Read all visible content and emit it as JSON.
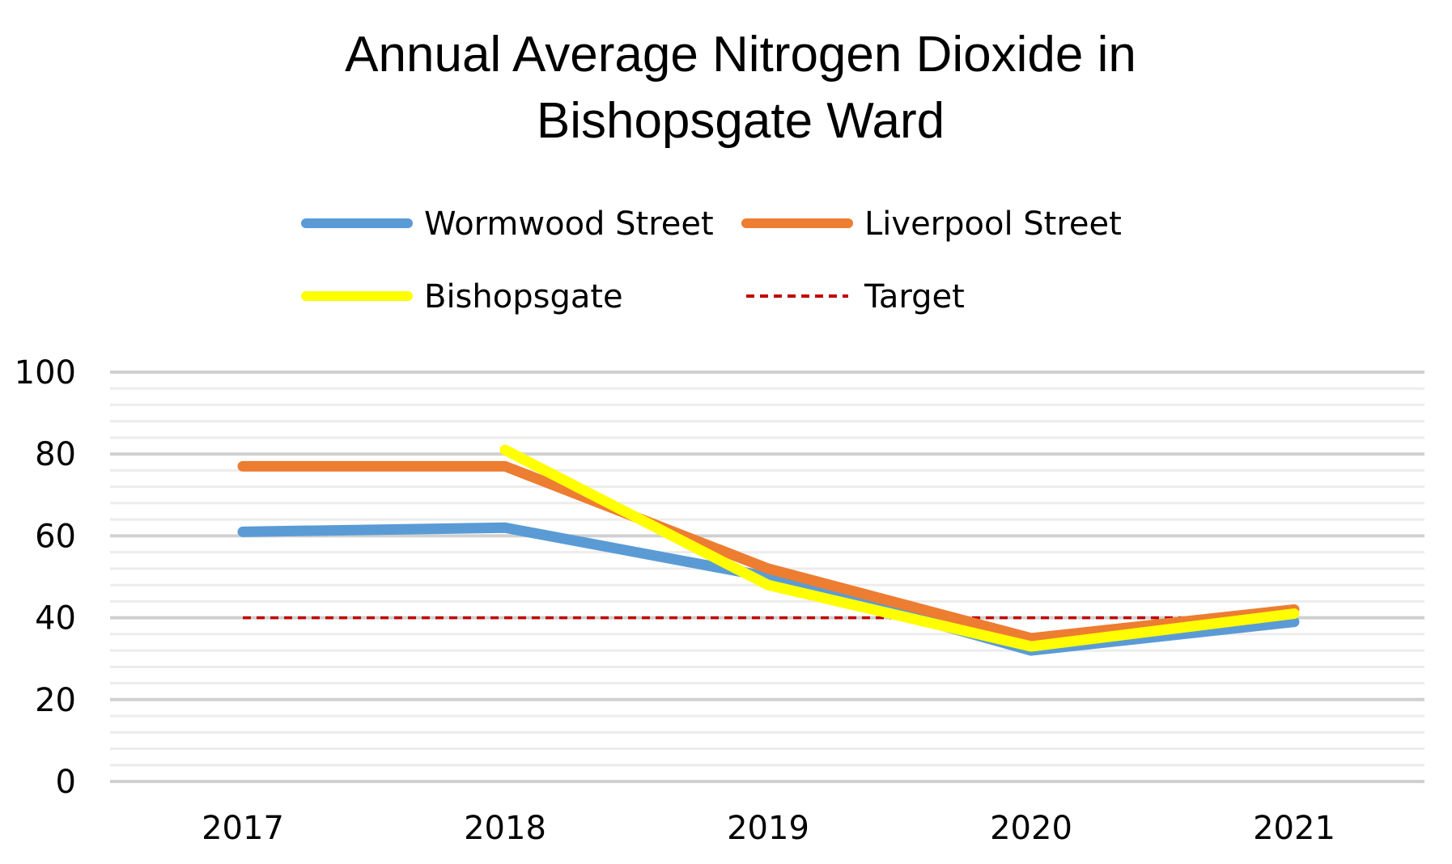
{
  "chart_data": {
    "type": "line",
    "title_lines": [
      "Annual Average  Nitrogen Dioxide in",
      "Bishopsgate Ward"
    ],
    "xlabel": "",
    "ylabel": "",
    "categories": [
      "2017",
      "2018",
      "2019",
      "2020",
      "2021"
    ],
    "ylim": [
      0,
      100
    ],
    "yticks": [
      0,
      20,
      40,
      60,
      80,
      100
    ],
    "grid": true,
    "legend_position": "top",
    "series": [
      {
        "name": "Wormwood Street",
        "color": "#5B9BD5",
        "style": "solid",
        "values": [
          61,
          62,
          50,
          32,
          39
        ]
      },
      {
        "name": "Liverpool Street",
        "color": "#ED7D31",
        "style": "solid",
        "values": [
          77,
          77,
          52,
          35,
          42
        ]
      },
      {
        "name": "Bishopsgate",
        "color": "#FFFF00",
        "style": "solid",
        "values": [
          null,
          81,
          48,
          33,
          41
        ]
      },
      {
        "name": "Target",
        "color": "#C00000",
        "style": "dashed",
        "values": [
          40,
          40,
          40,
          40,
          40
        ]
      }
    ]
  }
}
